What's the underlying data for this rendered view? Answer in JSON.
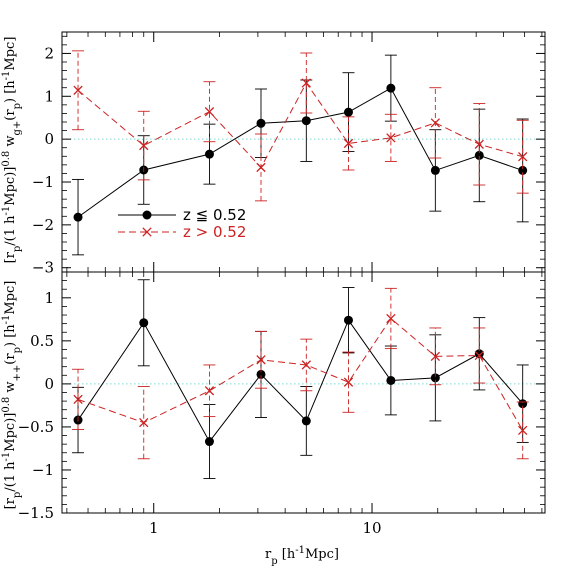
{
  "chart_data": [
    {
      "type": "scatter",
      "panel": "top",
      "ylabel": "[r_p/(1 h^-1Mpc)]^0.8 w_g+(r_p) [h^-1Mpc]",
      "xlim": [
        0.38,
        62
      ],
      "ylim": [
        -3.1,
        2.5
      ],
      "xscale": "log",
      "yticks": [
        -3,
        -2,
        -1,
        0,
        1,
        2
      ],
      "ytick_labels": [
        "−3",
        "−2",
        "−1",
        "0",
        "1",
        "2"
      ],
      "zero_line": true,
      "legend_position": "lower-left",
      "series": [
        {
          "name": "z ≦ 0.52",
          "color": "#000000",
          "marker": "circle",
          "line": "solid",
          "x": [
            0.45,
            0.9,
            1.8,
            3.1,
            5.0,
            7.8,
            12.2,
            19.5,
            31.0,
            49.0
          ],
          "y": [
            -1.82,
            -0.72,
            -0.35,
            0.37,
            0.43,
            0.63,
            1.19,
            -0.73,
            -0.38,
            -0.73
          ],
          "yerr": [
            0.88,
            0.8,
            0.7,
            0.8,
            0.95,
            0.92,
            0.77,
            0.95,
            1.08,
            1.2
          ]
        },
        {
          "name": "z > 0.52",
          "color": "#cc2222",
          "marker": "cross",
          "line": "dashed",
          "x": [
            0.45,
            0.9,
            1.8,
            3.1,
            5.0,
            7.8,
            12.2,
            19.5,
            31.0,
            49.0
          ],
          "y": [
            1.14,
            -0.15,
            0.64,
            -0.66,
            1.31,
            -0.1,
            0.03,
            0.38,
            -0.12,
            -0.41
          ],
          "yerr": [
            0.92,
            0.8,
            0.7,
            0.78,
            0.7,
            0.62,
            0.55,
            0.82,
            0.95,
            0.85
          ]
        }
      ]
    },
    {
      "type": "scatter",
      "panel": "bottom",
      "xlabel": "r_p [h^-1Mpc]",
      "ylabel": "[r_p/(1 h^-1Mpc)]^0.8 w_++(r_p) [h^-1Mpc]",
      "xlim": [
        0.38,
        62
      ],
      "ylim": [
        -1.5,
        1.3
      ],
      "xscale": "log",
      "yticks": [
        -1.5,
        -1,
        -0.5,
        0,
        0.5,
        1
      ],
      "ytick_labels": [
        "−1.5",
        "−1",
        "−0.5",
        "0",
        "0.5",
        "1"
      ],
      "xticks": [
        1,
        10
      ],
      "xtick_labels": [
        "1",
        "10"
      ],
      "zero_line": true,
      "series": [
        {
          "name": "z ≦ 0.52",
          "color": "#000000",
          "marker": "circle",
          "line": "solid",
          "x": [
            0.45,
            0.9,
            1.8,
            3.1,
            5.0,
            7.8,
            12.2,
            19.5,
            31.0,
            49.0
          ],
          "y": [
            -0.42,
            0.71,
            -0.67,
            0.11,
            -0.43,
            0.74,
            0.04,
            0.07,
            0.35,
            -0.23
          ],
          "yerr": [
            0.38,
            0.5,
            0.43,
            0.5,
            0.4,
            0.38,
            0.4,
            0.5,
            0.42,
            0.45
          ]
        },
        {
          "name": "z > 0.52",
          "color": "#cc2222",
          "marker": "cross",
          "line": "dashed",
          "x": [
            0.45,
            0.9,
            1.8,
            3.1,
            5.0,
            7.8,
            12.2,
            19.5,
            31.0,
            49.0
          ],
          "y": [
            -0.18,
            -0.45,
            -0.08,
            0.28,
            0.22,
            0.02,
            0.76,
            0.32,
            0.33,
            -0.54
          ],
          "yerr": [
            0.35,
            0.42,
            0.3,
            0.33,
            0.3,
            0.35,
            0.35,
            0.33,
            0.32,
            0.33
          ]
        }
      ]
    }
  ]
}
